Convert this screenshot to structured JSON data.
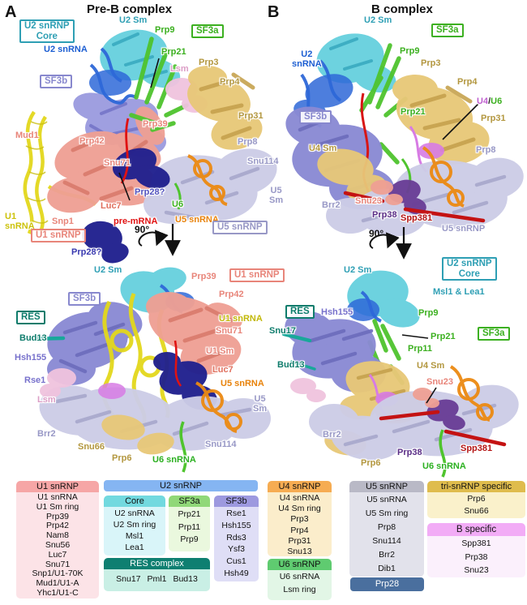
{
  "colors": {
    "teal": "#2E9FB4",
    "blue": "#1C5ED2",
    "green": "#3CB020",
    "tan": "#B3973F",
    "slate": "#8888CE",
    "gray_purple": "#9898C6",
    "salmon": "#E8857A",
    "pink": "#DC9EC6",
    "red": "#E01212",
    "navy": "#3A3AB0",
    "orange": "#E8820A",
    "yellow": "#CCC20A",
    "dark_teal": "#0E7C6C",
    "purple": "#7771CC",
    "violet": "#BE5ECE",
    "dark_purple": "#5A2D86",
    "dark_red": "#B41414"
  },
  "panelA": {
    "letter": "A",
    "title": "Pre-B complex",
    "rotation": "90°",
    "boxes": {
      "u2core": {
        "text": "U2 snRNP\nCore",
        "color": "#2E9FB4"
      },
      "sf3a": {
        "text": "SF3a",
        "color": "#3CB020"
      },
      "sf3b": {
        "text": "SF3b",
        "color": "#8888CE"
      },
      "u1snrnp": {
        "text": "U1 snRNP",
        "color": "#E8857A"
      },
      "u5snrnp": {
        "text": "U5 snRNP",
        "color": "#9898C6"
      },
      "sf3b_bot": {
        "text": "SF3b",
        "color": "#8888CE"
      },
      "res": {
        "text": "RES",
        "color": "#0E7C6C"
      },
      "u1snrnp_bot": {
        "text": "U1 snRNP",
        "color": "#E8857A"
      }
    },
    "top": {
      "u2sm": {
        "text": "U2 Sm",
        "color": "#2E9FB4"
      },
      "prp9": {
        "text": "Prp9",
        "color": "#3CB020"
      },
      "u2snrna": {
        "text": "U2 snRNA",
        "color": "#1C5ED2"
      },
      "prp21": {
        "text": "Prp21",
        "color": "#3CB020"
      },
      "lsm": {
        "text": "Lsm",
        "color": "#DC9EC6"
      },
      "prp3": {
        "text": "Prp3",
        "color": "#B3973F"
      },
      "prp4": {
        "text": "Prp4",
        "color": "#B3973F"
      },
      "prp39": {
        "text": "Prp39",
        "color": "#E8857A"
      },
      "prp31": {
        "text": "Prp31",
        "color": "#B3973F"
      },
      "mud1": {
        "text": "Mud1",
        "color": "#E8857A"
      },
      "prp42": {
        "text": "Prp42",
        "color": "#E8857A"
      },
      "prp8": {
        "text": "Prp8",
        "color": "#9898C6"
      },
      "snu71": {
        "text": "Snu71",
        "color": "#E8857A"
      },
      "snu114": {
        "text": "Snu114",
        "color": "#9898C6"
      },
      "prp28a": {
        "text": "Prp28?",
        "color": "#5252BE"
      },
      "luc7": {
        "text": "Luc7",
        "color": "#E0705E"
      },
      "u6": {
        "text": "U6",
        "color": "#3CB020"
      },
      "u5snrna": {
        "text": "U5 snRNA",
        "color": "#E8820A"
      },
      "u1snrna": {
        "text": "U1\nsnRNA",
        "color": "#CCC20A"
      },
      "snp1": {
        "text": "Snp1",
        "color": "#E8857A"
      },
      "premrna": {
        "text": "pre-mRNA",
        "color": "#E01212"
      },
      "prp28b": {
        "text": "Prp28?",
        "color": "#3A3AB0"
      },
      "u5sm": {
        "text": "U5\nSm",
        "color": "#9898C6"
      }
    },
    "bottom": {
      "u2sm": {
        "text": "U2 Sm",
        "color": "#2E9FB4"
      },
      "prp39": {
        "text": "Prp39",
        "color": "#E8857A"
      },
      "prp42": {
        "text": "Prp42",
        "color": "#E8857A"
      },
      "u1snrna": {
        "text": "U1 snRNA",
        "color": "#C2B808"
      },
      "snu71": {
        "text": "Snu71",
        "color": "#E8857A"
      },
      "bud13": {
        "text": "Bud13",
        "color": "#0E7C6C"
      },
      "hsh155": {
        "text": "Hsh155",
        "color": "#7771CC"
      },
      "u1sm": {
        "text": "U1 Sm",
        "color": "#E8857A"
      },
      "luc7": {
        "text": "Luc7",
        "color": "#E0705E"
      },
      "rse1": {
        "text": "Rse1",
        "color": "#7771CC"
      },
      "u5snrna": {
        "text": "U5 snRNA",
        "color": "#E8820A"
      },
      "lsm": {
        "text": "Lsm",
        "color": "#DC9EC6"
      },
      "u5sm": {
        "text": "U5\nSm",
        "color": "#9898C6"
      },
      "brr2": {
        "text": "Brr2",
        "color": "#9898C6"
      },
      "snu66": {
        "text": "Snu66",
        "color": "#B3973F"
      },
      "prp6": {
        "text": "Prp6",
        "color": "#B3973F"
      },
      "u6snrna": {
        "text": "U6 snRNA",
        "color": "#2BB020"
      },
      "snu114": {
        "text": "Snu114",
        "color": "#9898C6"
      }
    }
  },
  "panelB": {
    "letter": "B",
    "title": "B complex",
    "rotation": "90°",
    "boxes": {
      "sf3a": {
        "text": "SF3a",
        "color": "#3CB020"
      },
      "sf3b": {
        "text": "SF3b",
        "color": "#8888CE"
      },
      "u2core": {
        "text": "U2 snRNP\nCore",
        "color": "#2E9FB4"
      },
      "res": {
        "text": "RES",
        "color": "#0E7C6C"
      },
      "sf3a_bot": {
        "text": "SF3a",
        "color": "#3CB020"
      }
    },
    "top": {
      "u2sm": {
        "text": "U2 Sm",
        "color": "#2E9FB4"
      },
      "u2snrna": {
        "text": "U2\nsnRNA",
        "color": "#1C5ED2"
      },
      "prp9": {
        "text": "Prp9",
        "color": "#3CB020"
      },
      "prp3": {
        "text": "Prp3",
        "color": "#B3973F"
      },
      "prp4": {
        "text": "Prp4",
        "color": "#B3973F"
      },
      "prp21": {
        "text": "Prp21",
        "color": "#3CB020"
      },
      "u4u6": {
        "u4": "U4",
        "slash": "/",
        "u6": "U6",
        "u4_color": "#BE5ECE",
        "slash_color": "#222222",
        "u6_color": "#3CB020"
      },
      "prp31": {
        "text": "Prp31",
        "color": "#B3973F"
      },
      "u4sm": {
        "text": "U4 Sm",
        "color": "#B3973F"
      },
      "prp8": {
        "text": "Prp8",
        "color": "#9898C6"
      },
      "brr2": {
        "text": "Brr2",
        "color": "#9898C6"
      },
      "snu23": {
        "text": "Snu23",
        "color": "#E8857A"
      },
      "prp38": {
        "text": "Prp38",
        "color": "#5A2D86"
      },
      "spp381": {
        "text": "Spp381",
        "color": "#B41414"
      },
      "u5snrnp": {
        "text": "U5 snRNP",
        "color": "#9898C6"
      }
    },
    "bottom": {
      "u2sm": {
        "text": "U2 Sm",
        "color": "#2E9FB4"
      },
      "msl1lea1": {
        "text": "Msl1 & Lea1",
        "color": "#2E9FB4"
      },
      "hsh155": {
        "text": "Hsh155",
        "color": "#7771CC"
      },
      "prp9": {
        "text": "Prp9",
        "color": "#3CB020"
      },
      "snu17": {
        "text": "Snu17",
        "color": "#0E7C6C"
      },
      "prp21": {
        "text": "Prp21",
        "color": "#3CB020"
      },
      "prp11": {
        "text": "Prp11",
        "color": "#3CB020"
      },
      "bud13": {
        "text": "Bud13",
        "color": "#0E7C6C"
      },
      "u4sm": {
        "text": "U4 Sm",
        "color": "#B3973F"
      },
      "snu23": {
        "text": "Snu23",
        "color": "#E8857A"
      },
      "brr2": {
        "text": "Brr2",
        "color": "#9898C6"
      },
      "spp381": {
        "text": "Spp381",
        "color": "#B41414"
      },
      "prp38": {
        "text": "Prp38",
        "color": "#5A2D86"
      },
      "prp6": {
        "text": "Prp6",
        "color": "#B3973F"
      },
      "u6snrna": {
        "text": "U6 snRNA",
        "color": "#2BB020"
      }
    }
  },
  "legend": {
    "u1": {
      "header": "U1 snRNP",
      "header_bg": "#F6A6A6",
      "body_bg": "#FCE3E7",
      "items": [
        "U1 snRNA",
        "U1 Sm ring",
        "Prp39",
        "Prp42",
        "Nam8",
        "Snu56",
        "Luc7",
        "Snu71",
        "Snp1/U1-70K",
        "Mud1/U1-A",
        "Yhc1/U1-C"
      ]
    },
    "u2": {
      "header": "U2 snRNP",
      "header_bg": "#85B5F2",
      "core": {
        "header": "Core",
        "header_bg": "#72D9DF",
        "body_bg": "#D9F5F9",
        "items": [
          "U2 snRNA",
          "U2 Sm ring",
          "Msl1",
          "Lea1"
        ]
      },
      "sf3a": {
        "header": "SF3a",
        "header_bg": "#90D878",
        "body_bg": "#EAF8DE",
        "items": [
          "Prp21",
          "Prp11",
          "Prp9"
        ]
      },
      "sf3b": {
        "header": "SF3b",
        "header_bg": "#9D99DF",
        "body_bg": "#DFDEF6",
        "items": [
          "Rse1",
          "Hsh155",
          "Rds3",
          "Ysf3",
          "Cus1",
          "Hsh49"
        ]
      },
      "res": {
        "header": "RES complex",
        "header_bg": "#0E7F71",
        "body_bg": "#C9EFE5",
        "items": [
          "Snu17",
          "Pml1",
          "Bud13"
        ]
      }
    },
    "u4": {
      "header": "U4 snRNP",
      "header_bg": "#F6AC52",
      "body_bg": "#FBEDCB",
      "items": [
        "U4 snRNA",
        "U4 Sm ring",
        "Prp3",
        "Prp4",
        "Prp31",
        "Snu13"
      ]
    },
    "u6": {
      "header": "U6 snRNP",
      "header_bg": "#5FCB70",
      "body_bg": "#E2F6E6",
      "items": [
        "U6 snRNA",
        "Lsm ring"
      ]
    },
    "u5": {
      "header": "U5 snRNP",
      "header_bg": "#B9B9C6",
      "body_bg": "#E2E2EB",
      "items": [
        "U5 snRNA",
        "U5 Sm ring",
        "Prp8",
        "Snu114",
        "Brr2",
        "Dib1"
      ]
    },
    "prp28": {
      "label": "Prp28",
      "bg": "#4A6F9E"
    },
    "tri": {
      "header": "tri-snRNP specific",
      "header_bg": "#DFBC4D",
      "body_bg": "#FAF1CB",
      "items": [
        "Prp6",
        "Snu66"
      ]
    },
    "bspec": {
      "header": "B specific",
      "header_bg": "#F2ACF6",
      "body_bg": "#FBF0FC",
      "items": [
        "Spp381",
        "Prp38",
        "Snu23"
      ]
    }
  }
}
